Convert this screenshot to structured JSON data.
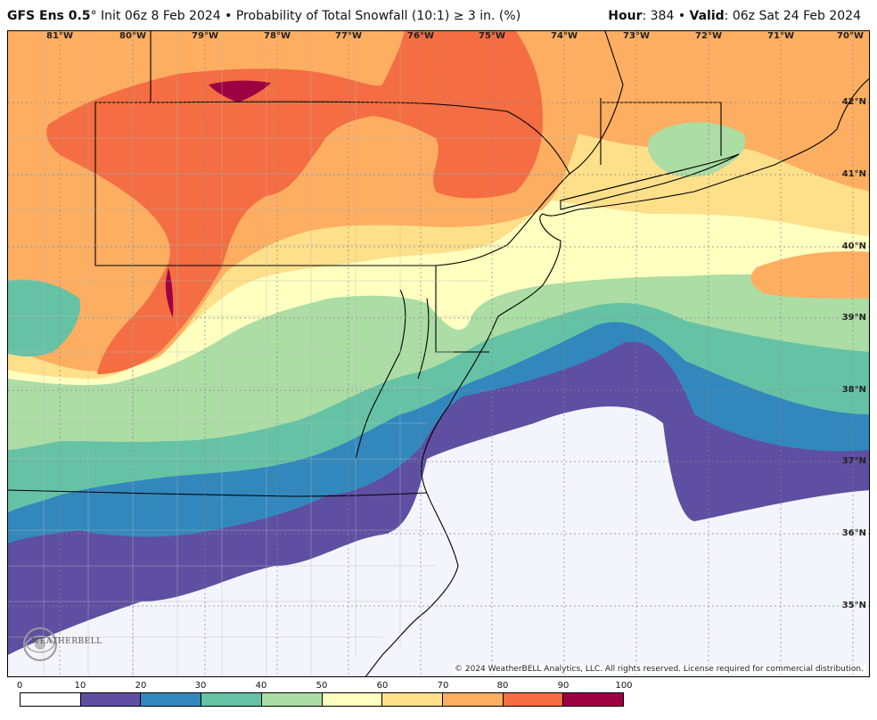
{
  "header": {
    "model": "GFS Ens 0.5",
    "degree": "°",
    "init": " Init 06z 8 Feb 2024",
    "separator": " • ",
    "product": "Probability of Total Snowfall (10:1)  ≥  3 in. (%)",
    "hour_label": "Hour",
    "hour_value": ": 384 • ",
    "valid_label": "Valid",
    "valid_value": ": 06z Sat 24 Feb 2024"
  },
  "map": {
    "longitude_labels": [
      "81°W",
      "80°W",
      "79°W",
      "78°W",
      "77°W",
      "76°W",
      "75°W",
      "74°W",
      "73°W",
      "72°W",
      "71°W",
      "70°W"
    ],
    "latitude_labels": [
      "42°N",
      "41°N",
      "40°N",
      "39°N",
      "38°N",
      "37°N",
      "36°N",
      "35°N"
    ],
    "copyright": "© 2024 WeatherBELL Analytics, LLC. All rights reserved. License required for commercial distribution.",
    "logo_text": "WEATHERBELL"
  },
  "colorbar": {
    "ticks": [
      "0",
      "10",
      "20",
      "30",
      "40",
      "50",
      "60",
      "70",
      "80",
      "90",
      "100"
    ],
    "colors": [
      "#ffffff",
      "#5e4fa2",
      "#3288bd",
      "#66c2a5",
      "#abdda4",
      "#ffffbf",
      "#fee08b",
      "#fdae61",
      "#f46d43",
      "#9e0142"
    ]
  },
  "fill_colors": {
    "lt10": "#f3f5fc",
    "p10": "#5e4fa2",
    "p20": "#3288bd",
    "p30": "#66c2a5",
    "p40": "#abdda4",
    "p50": "#ffffbf",
    "p60": "#fee08b",
    "p70": "#fdae61",
    "p80": "#f46d43",
    "p90": "#9e0142"
  }
}
